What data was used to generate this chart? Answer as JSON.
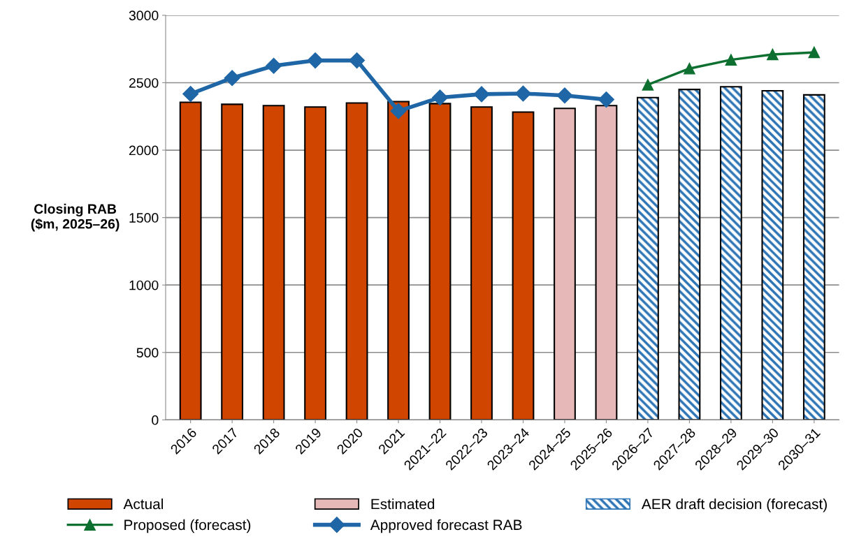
{
  "chart_data": {
    "type": "bar",
    "ylabel": "Closing RAB\n($m, 2025–26)",
    "categories": [
      "2016",
      "2017",
      "2018",
      "2019",
      "2020",
      "2021",
      "2021–22",
      "2022–23",
      "2023–24",
      "2024–25",
      "2025–26",
      "2026–27",
      "2027–28",
      "2028–29",
      "2029–30",
      "2030–31"
    ],
    "series": [
      {
        "name": "Actual",
        "color": "#d04600",
        "values": [
          2355,
          2340,
          2330,
          2320,
          2350,
          2360,
          2345,
          2320,
          2282,
          null,
          null,
          null,
          null,
          null,
          null,
          null
        ]
      },
      {
        "name": "Estimated",
        "color": "#e6b8b7",
        "values": [
          null,
          null,
          null,
          null,
          null,
          null,
          null,
          null,
          null,
          2310,
          2330,
          null,
          null,
          null,
          null,
          null
        ]
      },
      {
        "name": "AER draft decision (forecast)",
        "color": "#2e75b6",
        "values": [
          null,
          null,
          null,
          null,
          null,
          null,
          null,
          null,
          null,
          null,
          null,
          2390,
          2450,
          2470,
          2440,
          2410
        ]
      },
      {
        "name": "Proposed (forecast)",
        "type": "line",
        "color": "#0e7030",
        "marker": "triangle",
        "values": [
          null,
          null,
          null,
          null,
          null,
          null,
          null,
          null,
          null,
          null,
          null,
          2485,
          2605,
          2670,
          2710,
          2725
        ]
      },
      {
        "name": "Approved forecast RAB",
        "type": "line",
        "color": "#1f66a6",
        "marker": "diamond",
        "values": [
          2417,
          2535,
          2625,
          2665,
          2665,
          2290,
          2390,
          2415,
          2420,
          2405,
          2375,
          null,
          null,
          null,
          null,
          null
        ]
      }
    ],
    "ylim": [
      0,
      3000
    ],
    "yticks": [
      0,
      500,
      1000,
      1500,
      2000,
      2500,
      3000
    ],
    "grid": "y",
    "legend": "bottom",
    "line_style": "solid"
  }
}
